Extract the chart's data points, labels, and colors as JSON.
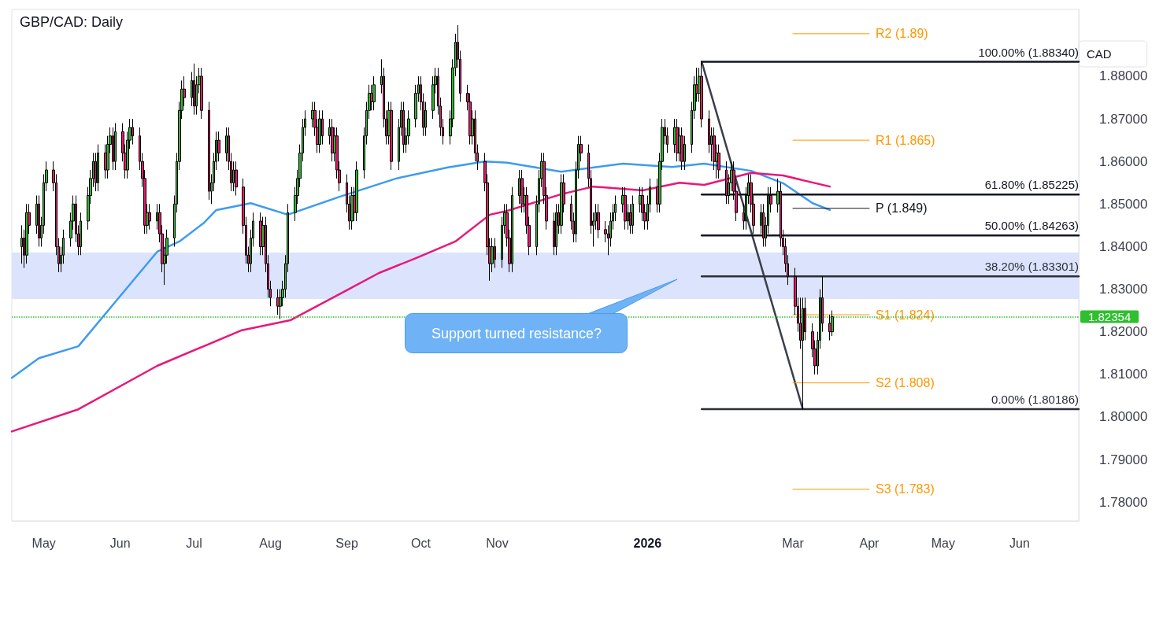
{
  "chart_data": {
    "type": "candlestick",
    "title": "GBP/CAD: Daily",
    "ylabel": "CAD",
    "x": [
      "2025-04-22",
      "2025-04-23",
      "2025-04-24",
      "2025-04-25",
      "2025-04-28",
      "2025-04-29",
      "2025-04-30",
      "2025-05-01",
      "2025-05-02",
      "2025-05-05",
      "2025-05-06",
      "2025-05-07",
      "2025-05-08",
      "2025-05-09",
      "2025-05-12",
      "2025-05-13",
      "2025-05-14",
      "2025-05-15",
      "2025-05-16",
      "2025-05-19",
      "2025-05-20",
      "2025-05-21",
      "2025-05-22",
      "2025-05-23",
      "2025-05-26",
      "2025-05-27",
      "2025-05-28",
      "2025-05-29",
      "2025-05-30",
      "2025-06-02",
      "2025-06-03",
      "2025-06-04",
      "2025-06-05",
      "2025-06-06",
      "2025-06-09",
      "2025-06-10",
      "2025-06-11",
      "2025-06-12",
      "2025-06-13",
      "2025-06-16",
      "2025-06-17",
      "2025-06-18",
      "2025-06-19",
      "2025-06-20",
      "2025-06-23",
      "2025-06-24",
      "2025-06-25",
      "2025-06-26",
      "2025-06-27",
      "2025-06-30",
      "2025-07-01",
      "2025-07-02",
      "2025-07-03",
      "2025-07-04",
      "2025-07-07",
      "2025-07-08",
      "2025-07-09",
      "2025-07-10",
      "2025-07-11",
      "2025-07-14",
      "2025-07-15",
      "2025-07-16",
      "2025-07-17",
      "2025-07-18",
      "2025-07-21",
      "2025-07-22",
      "2025-07-23",
      "2025-07-24",
      "2025-07-25",
      "2025-07-28",
      "2025-07-29",
      "2025-07-30",
      "2025-07-31",
      "2025-08-01",
      "2025-08-04",
      "2025-08-05",
      "2025-08-06",
      "2025-08-07",
      "2025-08-08",
      "2025-08-11",
      "2025-08-12",
      "2025-08-13",
      "2025-08-14",
      "2025-08-15",
      "2025-08-18",
      "2025-08-19",
      "2025-08-20",
      "2025-08-21",
      "2025-08-22",
      "2025-08-25",
      "2025-08-26",
      "2025-08-27",
      "2025-08-28",
      "2025-08-29",
      "2025-09-01",
      "2025-09-02",
      "2025-09-03",
      "2025-09-04",
      "2025-09-05",
      "2025-09-08",
      "2025-09-09",
      "2025-09-10",
      "2025-09-11",
      "2025-09-12",
      "2025-09-15",
      "2025-09-16",
      "2025-09-17",
      "2025-09-18",
      "2025-09-19",
      "2025-09-22",
      "2025-09-23",
      "2025-09-24",
      "2025-09-25",
      "2025-09-26",
      "2025-09-29",
      "2025-09-30",
      "2025-10-01",
      "2025-10-02",
      "2025-10-03",
      "2025-10-06",
      "2025-10-07",
      "2025-10-08",
      "2025-10-09",
      "2025-10-10",
      "2025-10-13",
      "2025-10-14",
      "2025-10-15",
      "2025-10-16",
      "2025-10-17",
      "2025-10-20",
      "2025-10-21",
      "2025-10-22",
      "2025-10-23",
      "2025-10-24",
      "2025-10-27",
      "2025-10-28",
      "2025-10-29",
      "2025-10-30",
      "2025-10-31",
      "2025-11-03",
      "2025-11-04",
      "2025-11-05",
      "2025-11-06",
      "2025-11-07",
      "2025-11-10",
      "2025-11-11",
      "2025-11-12",
      "2025-11-13",
      "2025-11-14",
      "2025-11-17",
      "2025-11-18",
      "2025-11-19",
      "2025-11-20",
      "2025-11-21",
      "2025-11-24",
      "2025-11-25",
      "2025-11-26",
      "2025-11-27",
      "2025-11-28",
      "2025-12-01",
      "2025-12-02",
      "2025-12-03",
      "2025-12-04",
      "2025-12-05",
      "2025-12-08",
      "2025-12-09",
      "2025-12-10",
      "2025-12-11",
      "2025-12-12",
      "2025-12-15",
      "2025-12-16",
      "2025-12-17",
      "2025-12-18",
      "2025-12-19",
      "2025-12-22",
      "2025-12-23",
      "2025-12-24",
      "2025-12-25",
      "2025-12-26",
      "2025-12-29",
      "2025-12-30",
      "2025-12-31",
      "2026-01-01",
      "2026-01-02",
      "2026-01-05",
      "2026-01-06",
      "2026-01-07",
      "2026-01-08",
      "2026-01-09",
      "2026-01-12",
      "2026-01-13",
      "2026-01-14",
      "2026-01-15",
      "2026-01-16",
      "2026-01-19",
      "2026-01-20",
      "2026-01-21",
      "2026-01-22",
      "2026-01-23",
      "2026-01-26",
      "2026-01-27",
      "2026-01-28",
      "2026-01-29",
      "2026-01-30",
      "2026-02-02",
      "2026-02-03",
      "2026-02-04",
      "2026-02-05",
      "2026-02-06",
      "2026-02-09",
      "2026-02-10",
      "2026-02-11",
      "2026-02-12",
      "2026-02-13",
      "2026-02-16",
      "2026-02-17",
      "2026-02-18",
      "2026-02-19",
      "2026-02-20",
      "2026-02-23",
      "2026-02-24",
      "2026-02-25",
      "2026-02-26",
      "2026-02-27",
      "2026-03-02",
      "2026-03-03",
      "2026-03-04",
      "2026-03-05",
      "2026-03-06",
      "2026-03-09",
      "2026-03-10",
      "2026-03-11",
      "2026-03-12",
      "2026-03-13",
      "2026-03-16",
      "2026-03-17"
    ],
    "ohlc": [
      [
        1.84,
        1.845,
        1.836,
        1.842
      ],
      [
        1.842,
        1.844,
        1.835,
        1.838
      ],
      [
        1.838,
        1.85,
        1.836,
        1.848
      ],
      [
        1.848,
        1.85,
        1.843,
        1.845
      ],
      [
        1.845,
        1.852,
        1.843,
        1.85
      ],
      [
        1.85,
        1.852,
        1.84,
        1.842
      ],
      [
        1.842,
        1.847,
        1.84,
        1.845
      ],
      [
        1.845,
        1.857,
        1.843,
        1.855
      ],
      [
        1.855,
        1.86,
        1.853,
        1.858
      ],
      [
        1.858,
        1.86,
        1.853,
        1.855
      ],
      [
        1.855,
        1.857,
        1.838,
        1.84
      ],
      [
        1.84,
        1.842,
        1.834,
        1.836
      ],
      [
        1.836,
        1.84,
        1.834,
        1.838
      ],
      [
        1.838,
        1.844,
        1.836,
        1.842
      ],
      [
        1.842,
        1.848,
        1.84,
        1.846
      ],
      [
        1.846,
        1.852,
        1.844,
        1.85
      ],
      [
        1.85,
        1.852,
        1.841,
        1.843
      ],
      [
        1.843,
        1.845,
        1.838,
        1.84
      ],
      [
        1.84,
        1.848,
        1.838,
        1.846
      ],
      [
        1.846,
        1.854,
        1.844,
        1.852
      ],
      [
        1.852,
        1.858,
        1.85,
        1.856
      ],
      [
        1.856,
        1.862,
        1.854,
        1.86
      ],
      [
        1.86,
        1.862,
        1.853,
        1.855
      ],
      [
        1.855,
        1.864,
        1.853,
        1.862
      ],
      [
        1.862,
        1.864,
        1.856,
        1.858
      ],
      [
        1.858,
        1.866,
        1.856,
        1.864
      ],
      [
        1.864,
        1.868,
        1.862,
        1.866
      ],
      [
        1.866,
        1.868,
        1.858,
        1.86
      ],
      [
        1.86,
        1.869,
        1.858,
        1.867
      ],
      [
        1.867,
        1.869,
        1.86,
        1.862
      ],
      [
        1.862,
        1.864,
        1.856,
        1.858
      ],
      [
        1.858,
        1.867,
        1.856,
        1.865
      ],
      [
        1.865,
        1.87,
        1.863,
        1.868
      ],
      [
        1.868,
        1.87,
        1.864,
        1.866
      ],
      [
        1.866,
        1.868,
        1.858,
        1.86
      ],
      [
        1.86,
        1.862,
        1.854,
        1.856
      ],
      [
        1.856,
        1.858,
        1.843,
        1.845
      ],
      [
        1.845,
        1.85,
        1.843,
        1.848
      ],
      [
        1.848,
        1.85,
        1.844,
        1.846
      ],
      [
        1.846,
        1.85,
        1.844,
        1.848
      ],
      [
        1.848,
        1.85,
        1.841,
        1.843
      ],
      [
        1.843,
        1.845,
        1.834,
        1.836
      ],
      [
        1.836,
        1.84,
        1.831,
        1.838
      ],
      [
        1.838,
        1.844,
        1.836,
        1.842
      ],
      [
        1.842,
        1.852,
        1.84,
        1.85
      ],
      [
        1.85,
        1.862,
        1.848,
        1.86
      ],
      [
        1.86,
        1.874,
        1.858,
        1.872
      ],
      [
        1.872,
        1.879,
        1.87,
        1.877
      ],
      [
        1.877,
        1.88,
        1.873,
        1.875
      ],
      [
        1.875,
        1.881,
        1.873,
        1.879
      ],
      [
        1.879,
        1.883,
        1.871,
        1.873
      ],
      [
        1.873,
        1.88,
        1.871,
        1.878
      ],
      [
        1.878,
        1.882,
        1.876,
        1.88
      ],
      [
        1.88,
        1.882,
        1.87,
        1.872
      ],
      [
        1.872,
        1.874,
        1.851,
        1.853
      ],
      [
        1.853,
        1.857,
        1.85,
        1.855
      ],
      [
        1.855,
        1.862,
        1.853,
        1.86
      ],
      [
        1.86,
        1.867,
        1.858,
        1.865
      ],
      [
        1.865,
        1.867,
        1.86,
        1.862
      ],
      [
        1.862,
        1.868,
        1.86,
        1.866
      ],
      [
        1.866,
        1.868,
        1.858,
        1.86
      ],
      [
        1.86,
        1.862,
        1.853,
        1.855
      ],
      [
        1.855,
        1.86,
        1.853,
        1.858
      ],
      [
        1.858,
        1.86,
        1.852,
        1.854
      ],
      [
        1.854,
        1.856,
        1.843,
        1.845
      ],
      [
        1.845,
        1.847,
        1.836,
        1.838
      ],
      [
        1.838,
        1.84,
        1.834,
        1.836
      ],
      [
        1.836,
        1.844,
        1.834,
        1.842
      ],
      [
        1.842,
        1.848,
        1.84,
        1.846
      ],
      [
        1.846,
        1.848,
        1.838,
        1.84
      ],
      [
        1.84,
        1.847,
        1.838,
        1.845
      ],
      [
        1.845,
        1.847,
        1.834,
        1.836
      ],
      [
        1.836,
        1.838,
        1.828,
        1.83
      ],
      [
        1.83,
        1.832,
        1.826,
        1.828
      ],
      [
        1.828,
        1.83,
        1.824,
        1.826
      ],
      [
        1.826,
        1.83,
        1.823,
        1.828
      ],
      [
        1.828,
        1.832,
        1.826,
        1.83
      ],
      [
        1.83,
        1.838,
        1.828,
        1.836
      ],
      [
        1.836,
        1.85,
        1.834,
        1.848
      ],
      [
        1.848,
        1.854,
        1.846,
        1.852
      ],
      [
        1.852,
        1.858,
        1.85,
        1.856
      ],
      [
        1.856,
        1.864,
        1.854,
        1.862
      ],
      [
        1.862,
        1.87,
        1.86,
        1.868
      ],
      [
        1.868,
        1.872,
        1.866,
        1.87
      ],
      [
        1.87,
        1.874,
        1.868,
        1.872
      ],
      [
        1.872,
        1.874,
        1.866,
        1.868
      ],
      [
        1.868,
        1.87,
        1.862,
        1.864
      ],
      [
        1.864,
        1.872,
        1.862,
        1.87
      ],
      [
        1.87,
        1.872,
        1.864,
        1.866
      ],
      [
        1.866,
        1.87,
        1.864,
        1.868
      ],
      [
        1.868,
        1.87,
        1.86,
        1.862
      ],
      [
        1.862,
        1.868,
        1.86,
        1.866
      ],
      [
        1.866,
        1.868,
        1.856,
        1.858
      ],
      [
        1.858,
        1.86,
        1.853,
        1.855
      ],
      [
        1.855,
        1.857,
        1.848,
        1.85
      ],
      [
        1.85,
        1.852,
        1.844,
        1.846
      ],
      [
        1.846,
        1.854,
        1.844,
        1.852
      ],
      [
        1.852,
        1.854,
        1.846,
        1.848
      ],
      [
        1.848,
        1.86,
        1.846,
        1.858
      ],
      [
        1.858,
        1.868,
        1.856,
        1.866
      ],
      [
        1.866,
        1.874,
        1.864,
        1.872
      ],
      [
        1.872,
        1.878,
        1.87,
        1.876
      ],
      [
        1.876,
        1.878,
        1.872,
        1.874
      ],
      [
        1.874,
        1.88,
        1.872,
        1.878
      ],
      [
        1.878,
        1.884,
        1.876,
        1.88
      ],
      [
        1.88,
        1.882,
        1.868,
        1.87
      ],
      [
        1.87,
        1.872,
        1.864,
        1.866
      ],
      [
        1.866,
        1.874,
        1.864,
        1.872
      ],
      [
        1.872,
        1.874,
        1.858,
        1.86
      ],
      [
        1.86,
        1.87,
        1.858,
        1.868
      ],
      [
        1.868,
        1.874,
        1.866,
        1.872
      ],
      [
        1.872,
        1.874,
        1.862,
        1.864
      ],
      [
        1.864,
        1.868,
        1.862,
        1.866
      ],
      [
        1.866,
        1.872,
        1.864,
        1.87
      ],
      [
        1.87,
        1.878,
        1.868,
        1.876
      ],
      [
        1.876,
        1.88,
        1.874,
        1.878
      ],
      [
        1.878,
        1.88,
        1.872,
        1.874
      ],
      [
        1.874,
        1.876,
        1.866,
        1.868
      ],
      [
        1.868,
        1.874,
        1.866,
        1.872
      ],
      [
        1.872,
        1.88,
        1.87,
        1.878
      ],
      [
        1.878,
        1.882,
        1.876,
        1.88
      ],
      [
        1.88,
        1.882,
        1.871,
        1.873
      ],
      [
        1.873,
        1.875,
        1.866,
        1.868
      ],
      [
        1.868,
        1.87,
        1.864,
        1.866
      ],
      [
        1.866,
        1.872,
        1.864,
        1.87
      ],
      [
        1.87,
        1.884,
        1.868,
        1.882
      ],
      [
        1.882,
        1.89,
        1.88,
        1.888
      ],
      [
        1.888,
        1.892,
        1.882,
        1.884
      ],
      [
        1.884,
        1.886,
        1.874,
        1.876
      ],
      [
        1.876,
        1.878,
        1.872,
        1.874
      ],
      [
        1.874,
        1.876,
        1.864,
        1.866
      ],
      [
        1.866,
        1.872,
        1.864,
        1.87
      ],
      [
        1.87,
        1.872,
        1.86,
        1.862
      ],
      [
        1.862,
        1.864,
        1.858,
        1.86
      ],
      [
        1.86,
        1.862,
        1.853,
        1.855
      ],
      [
        1.855,
        1.857,
        1.838,
        1.84
      ],
      [
        1.84,
        1.842,
        1.832,
        1.836
      ],
      [
        1.836,
        1.842,
        1.834,
        1.84
      ],
      [
        1.84,
        1.842,
        1.835,
        1.837
      ],
      [
        1.837,
        1.847,
        1.835,
        1.845
      ],
      [
        1.845,
        1.85,
        1.843,
        1.848
      ],
      [
        1.848,
        1.85,
        1.84,
        1.842
      ],
      [
        1.842,
        1.844,
        1.834,
        1.836
      ],
      [
        1.836,
        1.854,
        1.834,
        1.852
      ],
      [
        1.852,
        1.858,
        1.85,
        1.856
      ],
      [
        1.856,
        1.858,
        1.848,
        1.85
      ],
      [
        1.85,
        1.854,
        1.848,
        1.852
      ],
      [
        1.852,
        1.854,
        1.843,
        1.845
      ],
      [
        1.845,
        1.847,
        1.838,
        1.84
      ],
      [
        1.84,
        1.852,
        1.838,
        1.85
      ],
      [
        1.85,
        1.858,
        1.848,
        1.856
      ],
      [
        1.856,
        1.862,
        1.854,
        1.86
      ],
      [
        1.86,
        1.862,
        1.85,
        1.852
      ],
      [
        1.852,
        1.854,
        1.844,
        1.846
      ],
      [
        1.846,
        1.848,
        1.838,
        1.84
      ],
      [
        1.84,
        1.85,
        1.838,
        1.848
      ],
      [
        1.848,
        1.85,
        1.843,
        1.845
      ],
      [
        1.845,
        1.857,
        1.843,
        1.855
      ],
      [
        1.855,
        1.857,
        1.848,
        1.85
      ],
      [
        1.85,
        1.852,
        1.844,
        1.846
      ],
      [
        1.846,
        1.848,
        1.841,
        1.843
      ],
      [
        1.843,
        1.86,
        1.841,
        1.858
      ],
      [
        1.858,
        1.866,
        1.856,
        1.864
      ],
      [
        1.864,
        1.866,
        1.86,
        1.862
      ],
      [
        1.862,
        1.864,
        1.854,
        1.856
      ],
      [
        1.856,
        1.858,
        1.843,
        1.845
      ],
      [
        1.845,
        1.848,
        1.84,
        1.846
      ],
      [
        1.846,
        1.85,
        1.844,
        1.848
      ],
      [
        1.848,
        1.85,
        1.842,
        1.844
      ],
      [
        1.844,
        1.846,
        1.841,
        1.843
      ],
      [
        1.843,
        1.845,
        1.838,
        1.842
      ],
      [
        1.842,
        1.848,
        1.84,
        1.846
      ],
      [
        1.846,
        1.85,
        1.844,
        1.848
      ],
      [
        1.848,
        1.852,
        1.846,
        1.85
      ],
      [
        1.85,
        1.854,
        1.848,
        1.852
      ],
      [
        1.852,
        1.854,
        1.844,
        1.846
      ],
      [
        1.846,
        1.85,
        1.844,
        1.848
      ],
      [
        1.848,
        1.85,
        1.843,
        1.845
      ],
      [
        1.845,
        1.852,
        1.843,
        1.85
      ],
      [
        1.85,
        1.854,
        1.848,
        1.852
      ],
      [
        1.852,
        1.854,
        1.846,
        1.848
      ],
      [
        1.848,
        1.85,
        1.844,
        1.846
      ],
      [
        1.846,
        1.852,
        1.844,
        1.85
      ],
      [
        1.85,
        1.856,
        1.848,
        1.854
      ],
      [
        1.854,
        1.856,
        1.848,
        1.85
      ],
      [
        1.85,
        1.862,
        1.848,
        1.86
      ],
      [
        1.86,
        1.87,
        1.858,
        1.868
      ],
      [
        1.868,
        1.87,
        1.864,
        1.866
      ],
      [
        1.866,
        1.868,
        1.862,
        1.864
      ],
      [
        1.864,
        1.87,
        1.862,
        1.868
      ],
      [
        1.868,
        1.87,
        1.86,
        1.862
      ],
      [
        1.862,
        1.868,
        1.86,
        1.866
      ],
      [
        1.866,
        1.868,
        1.858,
        1.86
      ],
      [
        1.86,
        1.866,
        1.858,
        1.864
      ],
      [
        1.864,
        1.874,
        1.862,
        1.872
      ],
      [
        1.872,
        1.88,
        1.87,
        1.878
      ],
      [
        1.878,
        1.882,
        1.874,
        1.876
      ],
      [
        1.876,
        1.882,
        1.874,
        1.88
      ],
      [
        1.88,
        1.8834,
        1.868,
        1.87
      ],
      [
        1.87,
        1.872,
        1.862,
        1.864
      ],
      [
        1.864,
        1.868,
        1.86,
        1.866
      ],
      [
        1.866,
        1.868,
        1.858,
        1.86
      ],
      [
        1.86,
        1.864,
        1.856,
        1.862
      ],
      [
        1.862,
        1.864,
        1.856,
        1.858
      ],
      [
        1.858,
        1.86,
        1.85,
        1.852
      ],
      [
        1.852,
        1.857,
        1.85,
        1.855
      ],
      [
        1.855,
        1.86,
        1.853,
        1.858
      ],
      [
        1.858,
        1.86,
        1.851,
        1.853
      ],
      [
        1.853,
        1.855,
        1.846,
        1.848
      ],
      [
        1.848,
        1.85,
        1.844,
        1.846
      ],
      [
        1.846,
        1.854,
        1.844,
        1.852
      ],
      [
        1.852,
        1.857,
        1.85,
        1.855
      ],
      [
        1.855,
        1.857,
        1.848,
        1.85
      ],
      [
        1.85,
        1.852,
        1.843,
        1.845
      ],
      [
        1.845,
        1.85,
        1.843,
        1.848
      ],
      [
        1.848,
        1.85,
        1.84,
        1.842
      ],
      [
        1.842,
        1.847,
        1.84,
        1.845
      ],
      [
        1.845,
        1.854,
        1.843,
        1.852
      ],
      [
        1.852,
        1.854,
        1.848,
        1.85
      ],
      [
        1.85,
        1.856,
        1.848,
        1.853
      ],
      [
        1.853,
        1.855,
        1.84,
        1.842
      ],
      [
        1.842,
        1.844,
        1.838,
        1.84
      ],
      [
        1.84,
        1.842,
        1.834,
        1.836
      ],
      [
        1.836,
        1.838,
        1.831,
        1.833
      ],
      [
        1.833,
        1.835,
        1.824,
        1.826
      ],
      [
        1.826,
        1.828,
        1.82,
        1.822
      ],
      [
        1.822,
        1.828,
        1.816,
        1.818
      ],
      [
        1.818,
        1.828,
        1.80186,
        1.8255
      ],
      [
        1.8255,
        1.828,
        1.818,
        1.82
      ],
      [
        1.82,
        1.822,
        1.814,
        1.816
      ],
      [
        1.816,
        1.818,
        1.81,
        1.812
      ],
      [
        1.812,
        1.82,
        1.81,
        1.818
      ],
      [
        1.818,
        1.83,
        1.816,
        1.828
      ],
      [
        1.828,
        1.833,
        1.82,
        1.822
      ],
      [
        1.822,
        1.824,
        1.818,
        1.82
      ],
      [
        1.82,
        1.825,
        1.819,
        1.82354
      ]
    ],
    "series": [
      {
        "type": "line",
        "color": "#3d9bf0",
        "x": [
          "2025-04-18",
          "2025-04-29",
          "2025-05-15",
          "2025-05-31",
          "2025-06-16",
          "2025-06-25",
          "2025-07-05",
          "2025-07-10",
          "2025-07-24",
          "2025-08-08",
          "2025-08-29",
          "2025-09-21",
          "2025-10-12",
          "2025-10-27",
          "2025-11-05",
          "2025-11-27",
          "2025-12-22",
          "2026-01-11",
          "2026-01-24",
          "2026-02-12",
          "2026-02-25",
          "2026-03-09",
          "2026-03-16"
        ],
        "values": [
          1.8092,
          1.8138,
          1.8166,
          1.8277,
          1.8388,
          1.8412,
          1.8456,
          1.8486,
          1.8502,
          1.8475,
          1.8517,
          1.856,
          1.8586,
          1.86,
          1.8597,
          1.8576,
          1.8595,
          1.8587,
          1.8595,
          1.8578,
          1.8549,
          1.8502,
          1.8486
        ]
      },
      {
        "type": "line",
        "color": "#e8187a",
        "x": [
          "2025-04-18",
          "2025-05-15",
          "2025-06-16",
          "2025-07-20",
          "2025-08-09",
          "2025-09-02",
          "2025-09-14",
          "2025-09-29",
          "2025-10-15",
          "2025-10-29",
          "2025-11-05",
          "2025-11-27",
          "2025-12-10",
          "2025-12-30",
          "2026-01-14",
          "2026-01-24",
          "2026-02-12",
          "2026-02-25",
          "2026-03-16"
        ],
        "values": [
          1.7966,
          1.8018,
          1.812,
          1.8203,
          1.8227,
          1.8301,
          1.8338,
          1.8373,
          1.8412,
          1.8475,
          1.8484,
          1.8523,
          1.8541,
          1.8532,
          1.855,
          1.8545,
          1.8573,
          1.8567,
          1.8541
        ]
      },
      {
        "type": "line",
        "color": "#3a3f4b",
        "x": [
          "2026-01-23",
          "2026-03-05"
        ],
        "values": [
          1.8834,
          1.80186
        ]
      },
      {
        "type": "line",
        "name": "100.00% (1.88340)",
        "color": "#131722",
        "x": [
          "2026-01-23",
          "2026-06-25"
        ],
        "values": [
          1.8834,
          1.8834
        ]
      },
      {
        "type": "line",
        "name": "61.80% (1.85225)",
        "color": "#131722",
        "x": [
          "2026-01-23",
          "2026-06-25"
        ],
        "values": [
          1.85225,
          1.85225
        ]
      },
      {
        "type": "line",
        "name": "50.00% (1.84263)",
        "color": "#131722",
        "x": [
          "2026-01-23",
          "2026-06-25"
        ],
        "values": [
          1.84263,
          1.84263
        ]
      },
      {
        "type": "line",
        "name": "38.20% (1.83301)",
        "color": "#2a2e39",
        "x": [
          "2026-01-23",
          "2026-06-25"
        ],
        "values": [
          1.83301,
          1.83301
        ]
      },
      {
        "type": "line",
        "name": "0.00% (1.80186)",
        "color": "#2a2e39",
        "x": [
          "2026-01-23",
          "2026-06-25"
        ],
        "values": [
          1.80186,
          1.80186
        ]
      },
      {
        "type": "line",
        "name": "R2 (1.89)",
        "color": "#ff9800",
        "x": [
          "2026-03-01",
          "2026-04-01"
        ],
        "values": [
          1.89,
          1.89
        ]
      },
      {
        "type": "line",
        "name": "R1 (1.865)",
        "color": "#ff9800",
        "x": [
          "2026-03-01",
          "2026-04-01"
        ],
        "values": [
          1.865,
          1.865
        ]
      },
      {
        "type": "line",
        "name": "P (1.849)",
        "color": "#131722",
        "x": [
          "2026-03-01",
          "2026-04-01"
        ],
        "values": [
          1.849,
          1.849
        ]
      },
      {
        "type": "line",
        "name": "S1 (1.824)",
        "color": "#ff9800",
        "x": [
          "2026-03-01",
          "2026-04-01"
        ],
        "values": [
          1.824,
          1.824
        ]
      },
      {
        "type": "line",
        "name": "S2 (1.808)",
        "color": "#ff9800",
        "x": [
          "2026-03-01",
          "2026-04-01"
        ],
        "values": [
          1.808,
          1.808
        ]
      },
      {
        "type": "line",
        "name": "S3 (1.783)",
        "color": "#ff9800",
        "x": [
          "2026-03-01",
          "2026-04-01"
        ],
        "values": [
          1.783,
          1.783
        ]
      }
    ],
    "bands": [
      {
        "axis": "y",
        "from": 1.8277,
        "to": 1.8386,
        "color": "#dbe4fc"
      }
    ],
    "ref_lines": [
      {
        "axis": "y",
        "value": 1.82354,
        "label": "1.82354",
        "color": "#2fbf2f",
        "line_style": "dotted"
      }
    ],
    "annotations": [
      "Support turned resistance?"
    ],
    "xlim": [
      "2025-04-18",
      "2026-06-25"
    ],
    "xticks": [
      {
        "value": "2025-05-01",
        "label": "May"
      },
      {
        "value": "2025-06-01",
        "label": "Jun"
      },
      {
        "value": "2025-07-01",
        "label": "Jul"
      },
      {
        "value": "2025-08-01",
        "label": "Aug"
      },
      {
        "value": "2025-09-01",
        "label": "Sep"
      },
      {
        "value": "2025-10-01",
        "label": "Oct"
      },
      {
        "value": "2025-11-01",
        "label": "Nov"
      },
      {
        "value": "2026-01-01",
        "label": "2026"
      },
      {
        "value": "2026-03-01",
        "label": "Mar"
      },
      {
        "value": "2026-04-01",
        "label": "Apr"
      },
      {
        "value": "2026-05-01",
        "label": "May"
      },
      {
        "value": "2026-06-01",
        "label": "Jun"
      }
    ],
    "ylim": [
      1.7756,
      1.8957
    ],
    "yticks": [
      {
        "value": 1.78,
        "label": "1.78000"
      },
      {
        "value": 1.79,
        "label": "1.79000"
      },
      {
        "value": 1.8,
        "label": "1.80000"
      },
      {
        "value": 1.81,
        "label": "1.81000"
      },
      {
        "value": 1.82,
        "label": "1.82000"
      },
      {
        "value": 1.83,
        "label": "1.83000"
      },
      {
        "value": 1.84,
        "label": "1.84000"
      },
      {
        "value": 1.85,
        "label": "1.85000"
      },
      {
        "value": 1.86,
        "label": "1.86000"
      },
      {
        "value": 1.87,
        "label": "1.87000"
      },
      {
        "value": 1.88,
        "label": "1.88000"
      }
    ],
    "grid": false,
    "marker": "none",
    "line_style": "solid"
  }
}
